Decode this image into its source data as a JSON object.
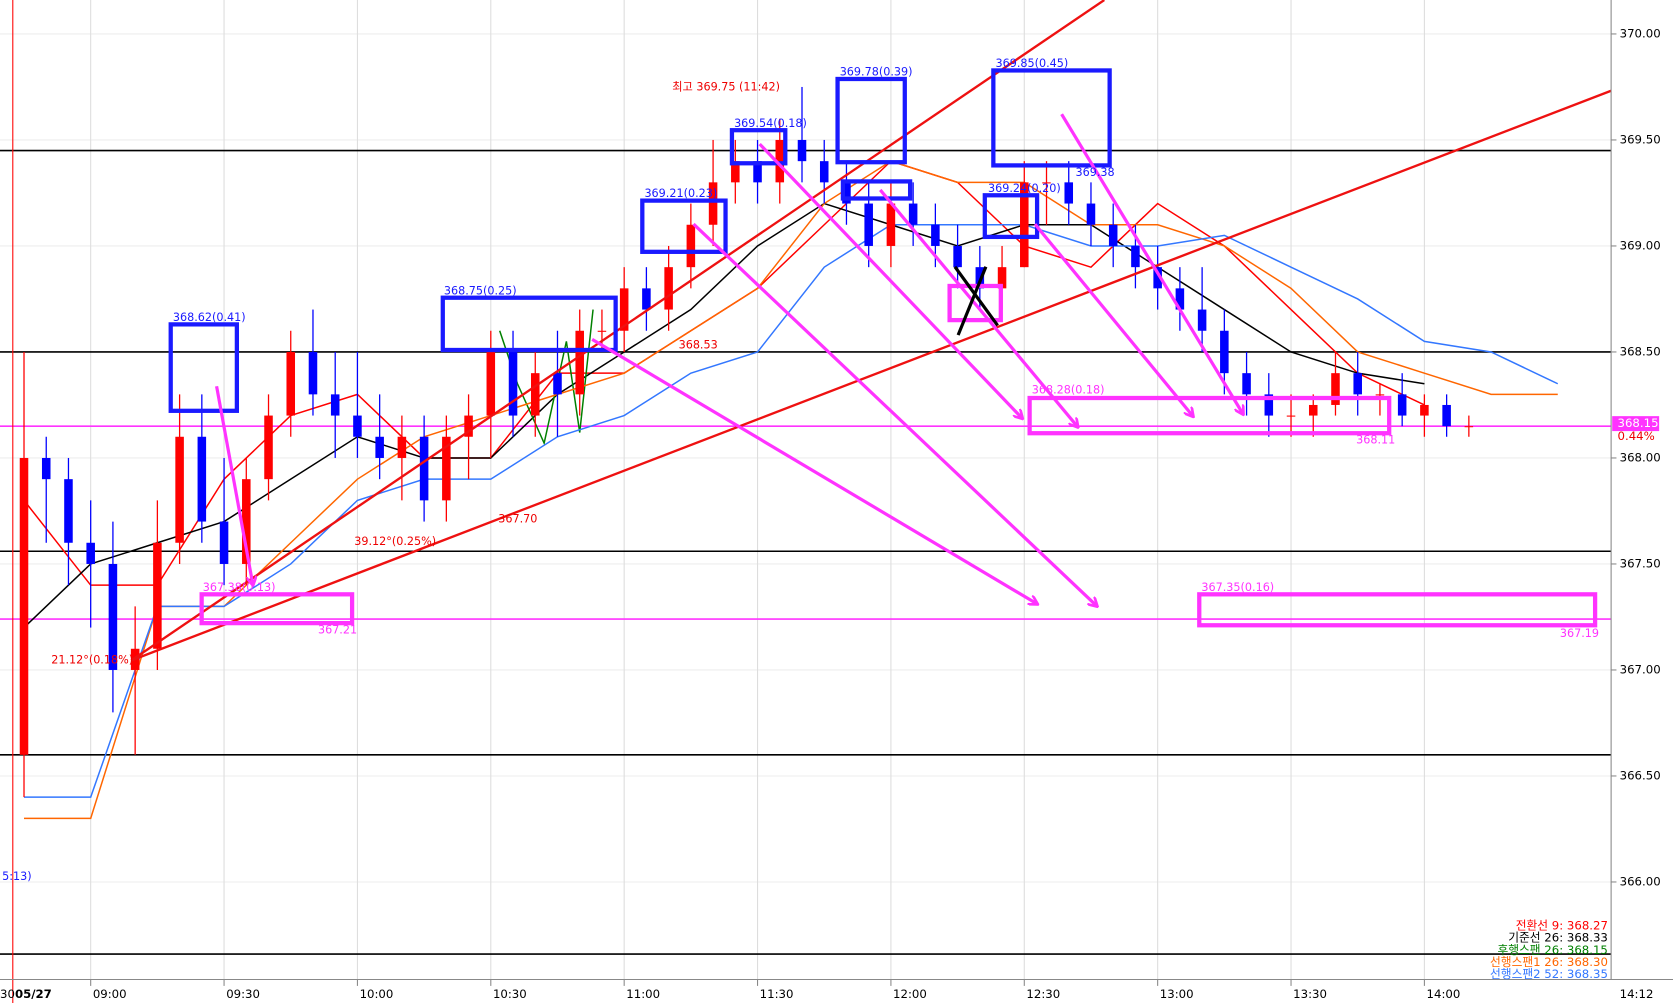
{
  "chart_data": {
    "type": "candlestick",
    "date_label": "05/27",
    "first_label_partial": "30",
    "current_time": "14:12",
    "up_color": "#ff0000",
    "down_color": "#0000ff",
    "ylim": [
      365.54,
      370.16
    ],
    "yticks": [
      {
        "value": 366,
        "label": "366.00"
      },
      {
        "value": 366.5,
        "label": "366.50"
      },
      {
        "value": 367,
        "label": "367.00"
      },
      {
        "value": 367.5,
        "label": "367.50"
      },
      {
        "value": 368,
        "label": "368.00"
      },
      {
        "value": 368.5,
        "label": "368.50"
      },
      {
        "value": 369,
        "label": "369.00"
      },
      {
        "value": 369.5,
        "label": "369.50"
      },
      {
        "value": 370,
        "label": "370.00"
      }
    ],
    "xticks": [
      "09:00",
      "09:30",
      "10:00",
      "10:30",
      "11:00",
      "11:30",
      "12:00",
      "12:30",
      "13:00",
      "13:30",
      "14:00"
    ],
    "x": [
      "08:45",
      "08:50",
      "08:55",
      "09:00",
      "09:05",
      "09:10",
      "09:15",
      "09:20",
      "09:25",
      "09:30",
      "09:35",
      "09:40",
      "09:45",
      "09:50",
      "09:55",
      "10:00",
      "10:05",
      "10:10",
      "10:15",
      "10:20",
      "10:25",
      "10:30",
      "10:35",
      "10:40",
      "10:45",
      "10:50",
      "10:55",
      "11:00",
      "11:05",
      "11:10",
      "11:15",
      "11:20",
      "11:25",
      "11:30",
      "11:35",
      "11:40",
      "11:45",
      "11:50",
      "11:55",
      "12:00",
      "12:05",
      "12:10",
      "12:15",
      "12:20",
      "12:25",
      "12:30",
      "12:35",
      "12:40",
      "12:45",
      "12:50",
      "12:55",
      "13:00",
      "13:05",
      "13:10",
      "13:15",
      "13:20",
      "13:25",
      "13:30",
      "13:35",
      "13:40",
      "13:45",
      "13:50",
      "13:55",
      "14:00",
      "14:05",
      "14:10"
    ],
    "open": [
      366.6,
      368.0,
      367.9,
      367.6,
      367.5,
      367.0,
      367.1,
      367.6,
      368.1,
      367.7,
      367.5,
      367.9,
      368.2,
      368.5,
      368.3,
      368.2,
      368.1,
      368.0,
      368.1,
      367.8,
      368.1,
      368.2,
      368.5,
      368.2,
      368.4,
      368.3,
      368.6,
      368.6,
      368.8,
      368.7,
      368.9,
      369.1,
      369.3,
      369.4,
      369.3,
      369.5,
      369.4,
      369.3,
      369.2,
      369.0,
      369.2,
      369.1,
      369.0,
      368.9,
      368.8,
      368.9,
      369.3,
      369.3,
      369.2,
      369.1,
      369.0,
      368.9,
      368.8,
      368.7,
      368.6,
      368.4,
      368.3,
      368.2,
      368.2,
      368.25,
      368.4,
      368.3,
      368.3,
      368.2,
      368.25,
      368.15
    ],
    "high": [
      368.5,
      368.1,
      368.0,
      367.8,
      367.7,
      367.3,
      367.8,
      368.3,
      368.3,
      368.0,
      368.0,
      368.3,
      368.6,
      368.7,
      368.5,
      368.5,
      368.3,
      368.2,
      368.2,
      368.2,
      368.3,
      368.6,
      368.6,
      368.5,
      368.6,
      368.7,
      368.7,
      368.9,
      368.9,
      369.0,
      369.2,
      369.5,
      369.5,
      369.5,
      369.6,
      369.75,
      369.5,
      369.4,
      369.3,
      369.3,
      369.3,
      369.2,
      369.1,
      369.0,
      369.0,
      369.4,
      369.4,
      369.4,
      369.3,
      369.2,
      369.1,
      369.0,
      368.9,
      368.9,
      368.7,
      368.5,
      368.4,
      368.3,
      368.3,
      368.5,
      368.5,
      368.35,
      368.4,
      368.3,
      368.3,
      368.2
    ],
    "low": [
      366.4,
      367.6,
      367.4,
      367.2,
      366.8,
      366.6,
      367.0,
      367.5,
      367.6,
      367.4,
      367.4,
      367.8,
      368.1,
      368.2,
      368.0,
      368.0,
      367.9,
      367.8,
      367.7,
      367.7,
      367.9,
      368.0,
      368.1,
      368.1,
      368.1,
      368.2,
      368.5,
      368.5,
      368.6,
      368.6,
      368.8,
      369.0,
      369.2,
      369.2,
      369.2,
      369.3,
      369.2,
      369.1,
      368.9,
      368.9,
      369.0,
      368.9,
      368.8,
      368.7,
      368.7,
      368.9,
      369.1,
      369.1,
      369.0,
      368.9,
      368.8,
      368.7,
      368.6,
      368.5,
      368.3,
      368.2,
      368.1,
      368.1,
      368.1,
      368.2,
      368.2,
      368.2,
      368.15,
      368.1,
      368.1,
      368.1
    ],
    "close": [
      368.0,
      367.9,
      367.6,
      367.5,
      367.0,
      367.1,
      367.6,
      368.1,
      367.7,
      367.5,
      367.9,
      368.2,
      368.5,
      368.3,
      368.2,
      368.1,
      368.0,
      368.1,
      367.8,
      368.1,
      368.2,
      368.5,
      368.2,
      368.4,
      368.3,
      368.6,
      368.6,
      368.8,
      368.7,
      368.9,
      369.1,
      369.3,
      369.4,
      369.3,
      369.5,
      369.4,
      369.3,
      369.2,
      369.0,
      369.2,
      369.1,
      369.0,
      368.9,
      368.8,
      368.9,
      369.3,
      369.3,
      369.2,
      369.1,
      369.0,
      368.9,
      368.8,
      368.7,
      368.6,
      368.4,
      368.3,
      368.2,
      368.2,
      368.25,
      368.4,
      368.3,
      368.3,
      368.2,
      368.25,
      368.15,
      368.15
    ],
    "overlays": [
      {
        "name": "전환선 9: 368.27",
        "color": "#ff0000",
        "x": [
          "08:45",
          "09:00",
          "09:15",
          "09:30",
          "09:45",
          "10:00",
          "10:15",
          "10:30",
          "10:45",
          "11:00",
          "11:15",
          "11:30",
          "11:45",
          "12:00",
          "12:15",
          "12:30",
          "12:45",
          "13:00",
          "13:15",
          "13:30",
          "13:45",
          "14:00"
        ],
        "values": [
          367.8,
          367.4,
          367.4,
          367.9,
          368.2,
          368.3,
          368.0,
          368.0,
          368.4,
          368.4,
          368.6,
          368.8,
          369.1,
          369.4,
          369.3,
          369.0,
          368.9,
          369.2,
          369.0,
          368.7,
          368.4,
          368.25
        ]
      },
      {
        "name": "기준선 26: 368.33",
        "color": "#000000",
        "x": [
          "08:45",
          "09:00",
          "09:15",
          "09:30",
          "09:45",
          "10:00",
          "10:15",
          "10:30",
          "10:45",
          "11:00",
          "11:15",
          "11:30",
          "11:45",
          "12:00",
          "12:15",
          "12:30",
          "12:45",
          "13:00",
          "13:15",
          "13:30",
          "13:45",
          "14:00"
        ],
        "values": [
          367.2,
          367.5,
          367.6,
          367.7,
          367.9,
          368.1,
          368.0,
          368.0,
          368.3,
          368.5,
          368.7,
          369.0,
          369.2,
          369.1,
          369.0,
          369.1,
          369.1,
          368.9,
          368.7,
          368.5,
          368.4,
          368.35
        ]
      },
      {
        "name": "후행스팬 26: 368.15",
        "color": "#008000",
        "x": [
          "10:32",
          "10:36",
          "10:42",
          "10:47",
          "10:50",
          "10:53"
        ],
        "values": [
          368.6,
          368.35,
          368.07,
          368.55,
          368.12,
          368.7
        ]
      },
      {
        "name": "선행스팬1 26: 368.30",
        "color": "#ff6600",
        "x": [
          "08:45",
          "09:00",
          "09:15",
          "09:30",
          "09:45",
          "10:00",
          "10:15",
          "10:30",
          "10:45",
          "11:00",
          "11:15",
          "11:30",
          "11:45",
          "12:00",
          "12:15",
          "12:30",
          "12:45",
          "13:00",
          "13:15",
          "13:30",
          "13:45",
          "14:00",
          "14:15",
          "14:30"
        ],
        "values": [
          366.3,
          366.3,
          367.3,
          367.3,
          367.6,
          367.9,
          368.1,
          368.2,
          368.3,
          368.4,
          368.6,
          368.8,
          369.2,
          369.4,
          369.3,
          369.3,
          369.1,
          369.1,
          369.0,
          368.8,
          368.5,
          368.4,
          368.3,
          368.3
        ]
      },
      {
        "name": "선행스팬2 52: 368.35",
        "color": "#3377ff",
        "x": [
          "08:45",
          "09:00",
          "09:15",
          "09:30",
          "09:45",
          "10:00",
          "10:15",
          "10:30",
          "10:45",
          "11:00",
          "11:15",
          "11:30",
          "11:45",
          "12:00",
          "12:15",
          "12:30",
          "12:45",
          "13:00",
          "13:15",
          "13:30",
          "13:45",
          "14:00",
          "14:15",
          "14:30"
        ],
        "values": [
          366.4,
          366.4,
          367.3,
          367.3,
          367.5,
          367.8,
          367.9,
          367.9,
          368.1,
          368.2,
          368.4,
          368.5,
          368.9,
          369.1,
          369.1,
          369.1,
          369.0,
          369.0,
          369.05,
          368.9,
          368.75,
          368.55,
          368.5,
          368.35
        ]
      }
    ],
    "hlines": [
      369.45,
      368.5,
      367.56,
      366.6,
      365.66
    ],
    "hline_color": "#000000",
    "support_lines": [
      368.15,
      367.24
    ],
    "support_color": "#ff33ff",
    "last_price": 368.15,
    "last_change_label": "0.44%",
    "annotations": [
      "최고 369.75 (11:42)",
      "369.78(0.39)",
      "369.85(0.45)",
      "369.54(0.18)",
      "369.21(0.23)",
      "368.75(0.25)",
      "368.62(0.41)",
      "367.38(0.13)",
      "367.21",
      "21.12°(0.18%)",
      "39.12°(0.25%)",
      "367.70",
      "368.53",
      "368.28(0.18)",
      "368.11",
      "367.35(0.16)",
      "367.19",
      "369.24(0.20)",
      "369.38",
      "5:13)"
    ]
  }
}
